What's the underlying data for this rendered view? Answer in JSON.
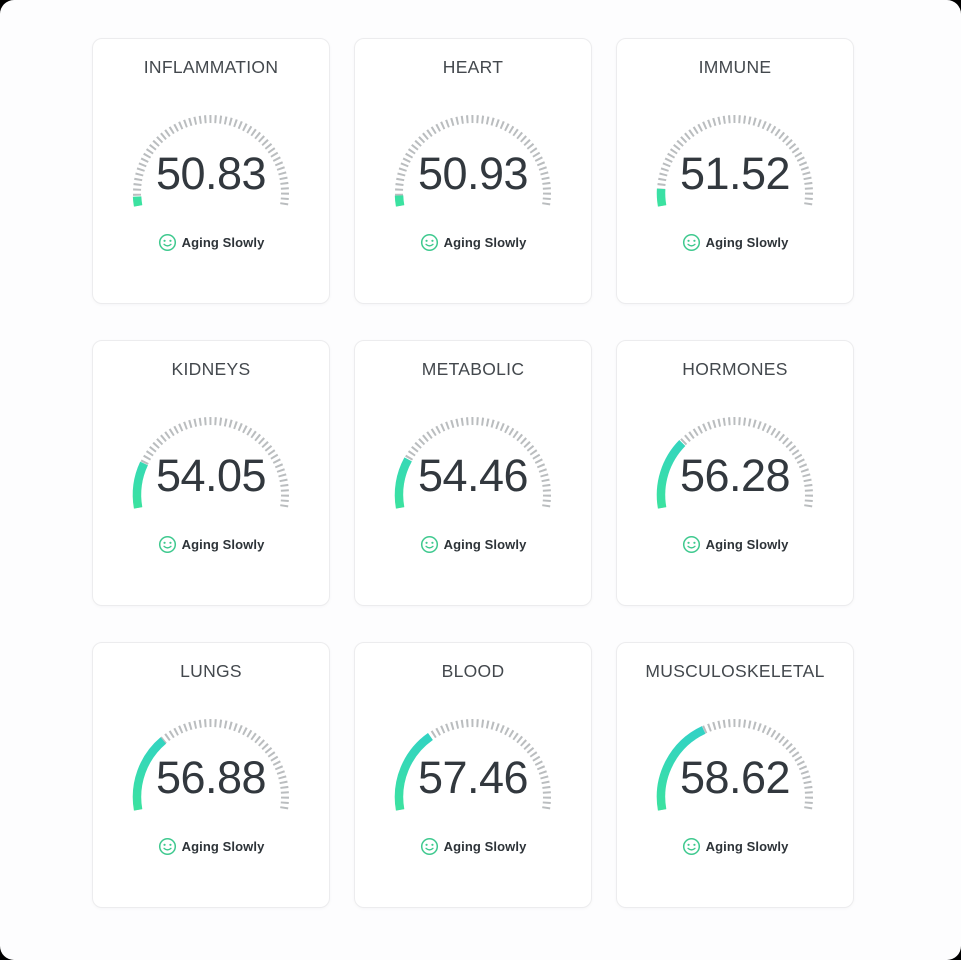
{
  "status_label_shared": "Aging Slowly",
  "cards": [
    {
      "title": "INFLAMMATION",
      "value": "50.83",
      "status": "Aging Slowly"
    },
    {
      "title": "HEART",
      "value": "50.93",
      "status": "Aging Slowly"
    },
    {
      "title": "IMMUNE",
      "value": "51.52",
      "status": "Aging Slowly"
    },
    {
      "title": "KIDNEYS",
      "value": "54.05",
      "status": "Aging Slowly"
    },
    {
      "title": "METABOLIC",
      "value": "54.46",
      "status": "Aging Slowly"
    },
    {
      "title": "HORMONES",
      "value": "56.28",
      "status": "Aging Slowly"
    },
    {
      "title": "LUNGS",
      "value": "56.88",
      "status": "Aging Slowly"
    },
    {
      "title": "BLOOD",
      "value": "57.46",
      "status": "Aging Slowly"
    },
    {
      "title": "MUSCULOSKELETAL",
      "value": "58.62",
      "status": "Aging Slowly"
    }
  ],
  "chart_data": {
    "type": "gauge",
    "layout": "3x3-grid",
    "arc_sweep_degrees": 200,
    "gauge_range": [
      50,
      73
    ],
    "series": [
      {
        "label": "INFLAMMATION",
        "value": 50.83,
        "status": "Aging Slowly"
      },
      {
        "label": "HEART",
        "value": 50.93,
        "status": "Aging Slowly"
      },
      {
        "label": "IMMUNE",
        "value": 51.52,
        "status": "Aging Slowly"
      },
      {
        "label": "KIDNEYS",
        "value": 54.05,
        "status": "Aging Slowly"
      },
      {
        "label": "METABOLIC",
        "value": 54.46,
        "status": "Aging Slowly"
      },
      {
        "label": "HORMONES",
        "value": 56.28,
        "status": "Aging Slowly"
      },
      {
        "label": "LUNGS",
        "value": 56.88,
        "status": "Aging Slowly"
      },
      {
        "label": "BLOOD",
        "value": 57.46,
        "status": "Aging Slowly"
      },
      {
        "label": "MUSCULOSKELETAL",
        "value": 58.62,
        "status": "Aging Slowly"
      }
    ]
  },
  "icons": {
    "status_icon": "smiley-face-icon"
  },
  "colors": {
    "gauge_green": "#3DE49B",
    "gauge_teal": "#2FCFCC",
    "tick_gray": "#BABDBF",
    "smiley_green": "#3FC98F",
    "title_text": "#43484D",
    "value_text": "#32383E",
    "status_text": "#2D3338",
    "card_border": "#ECECEE",
    "page_background": "#FDFDFE"
  }
}
